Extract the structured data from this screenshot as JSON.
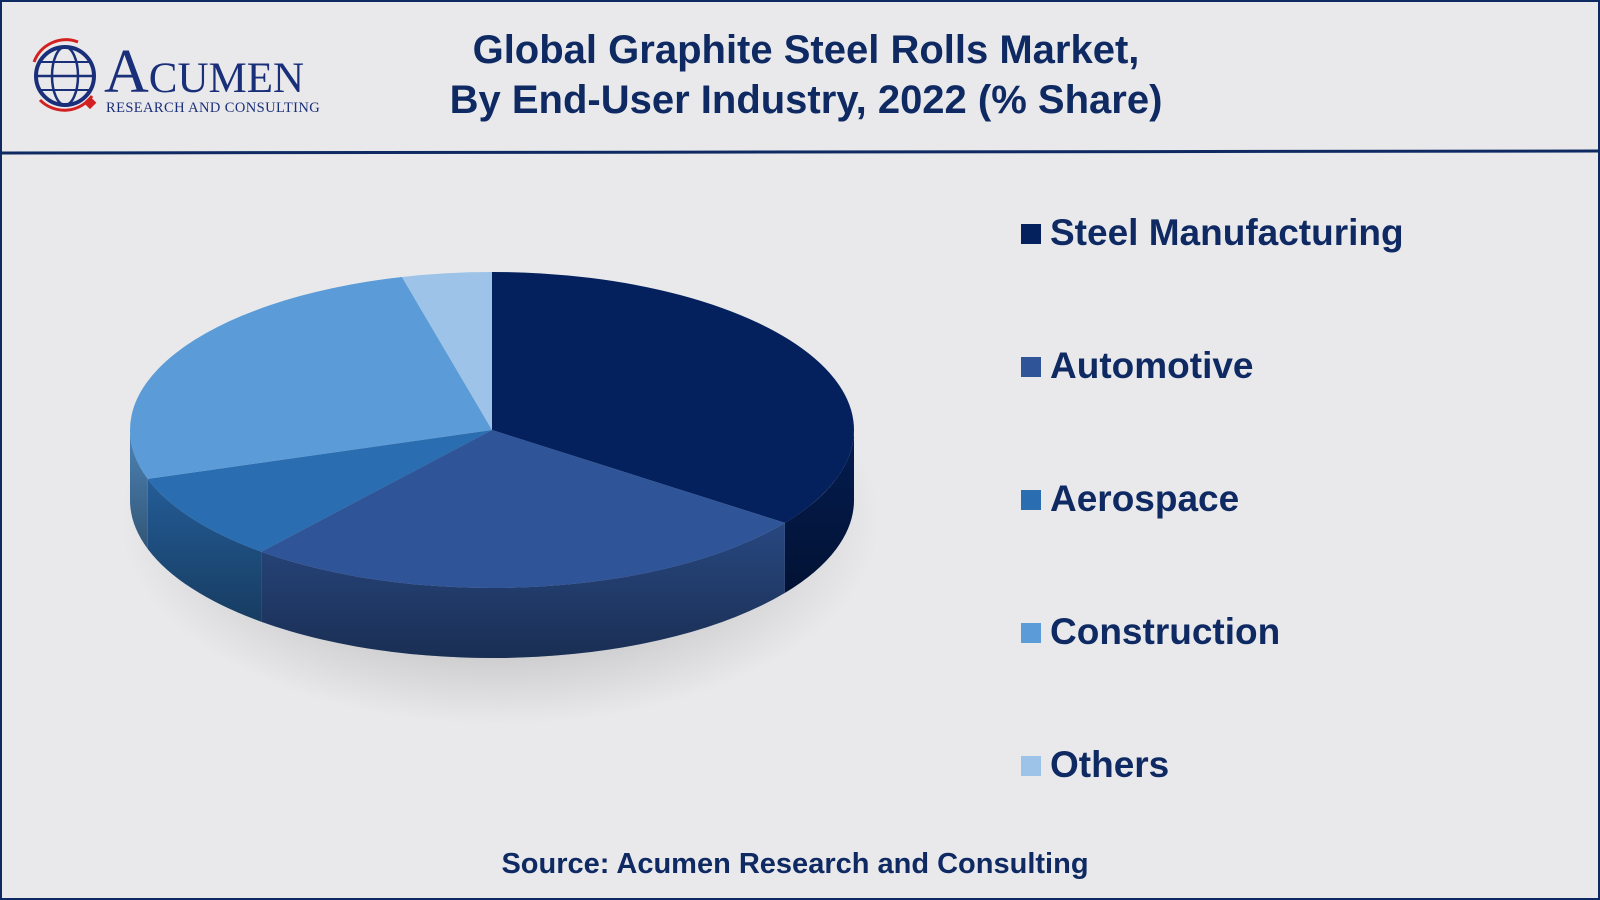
{
  "logo": {
    "name": "Acumen",
    "tagline": "RESEARCH AND CONSULTING"
  },
  "chart_data": {
    "type": "pie",
    "title": [
      "Global Graphite Steel Rolls Market,",
      "By End-User Industry, 2022 (% Share)"
    ],
    "categories": [
      "Steel Manufacturing",
      "Automotive",
      "Aerospace",
      "Construction",
      "Others"
    ],
    "values": [
      35,
      26,
      9,
      26,
      4
    ],
    "colors": [
      "#04215e",
      "#2f5497",
      "#2a6db1",
      "#5b9bd7",
      "#9dc3e8"
    ],
    "source": "Source: Acumen Research and Consulting"
  }
}
